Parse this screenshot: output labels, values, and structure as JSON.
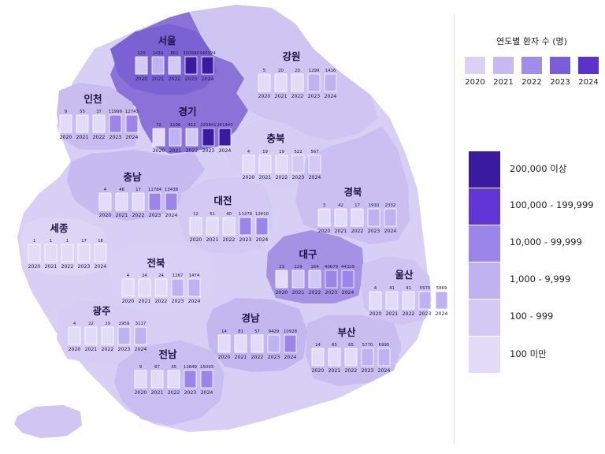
{
  "legend": {
    "title": "연도별 환자 수 (명)",
    "years": [
      "2020",
      "2021",
      "2022",
      "2023",
      "2024"
    ],
    "year_colors": [
      "#d9d2f5",
      "#c6baf1",
      "#a08de8",
      "#7a5ed9",
      "#5a32cc"
    ],
    "scale": [
      {
        "label": "200,000 이상",
        "color": "#3a1a9e"
      },
      {
        "label": "100,000 - 199,999",
        "color": "#6236d6"
      },
      {
        "label": "10,000 - 99,999",
        "color": "#9b84ea"
      },
      {
        "label": "1,000 - 9,999",
        "color": "#bfb2f1"
      },
      {
        "label": "100 - 999",
        "color": "#d2c9f5"
      },
      {
        "label": "100 미만",
        "color": "#e2dcf9"
      }
    ]
  },
  "regions": [
    {
      "id": "seoul",
      "name": "서울",
      "values": [
        "120",
        "1419",
        "861",
        "300990",
        "340324"
      ],
      "levels": [
        4,
        3,
        4,
        0,
        0
      ],
      "fill": "#7b62d2",
      "dark": true
    },
    {
      "id": "gangwon",
      "name": "강원",
      "values": [
        "5",
        "20",
        "20",
        "1299",
        "1416"
      ],
      "levels": [
        5,
        5,
        5,
        3,
        3
      ],
      "fill": "#cfc5f2",
      "dark": false
    },
    {
      "id": "incheon",
      "name": "인천",
      "values": [
        "9",
        "55",
        "37",
        "11999",
        "12743"
      ],
      "levels": [
        5,
        5,
        5,
        2,
        2
      ],
      "fill": "#c9bdf0",
      "dark": false
    },
    {
      "id": "gyeonggi",
      "name": "경기",
      "values": [
        "72",
        "1196",
        "412",
        "225841",
        "261441"
      ],
      "levels": [
        5,
        3,
        4,
        0,
        0
      ],
      "fill": "#8a72d8",
      "dark": true
    },
    {
      "id": "chungbuk",
      "name": "충북",
      "values": [
        "4",
        "19",
        "19",
        "522",
        "567"
      ],
      "levels": [
        5,
        5,
        5,
        4,
        4
      ],
      "fill": "#d6cdf4",
      "dark": false
    },
    {
      "id": "chungnam",
      "name": "충남",
      "values": [
        "4",
        "46",
        "17",
        "11784",
        "13438"
      ],
      "levels": [
        5,
        5,
        5,
        2,
        2
      ],
      "fill": "#c6baf0",
      "dark": false
    },
    {
      "id": "daejeon",
      "name": "대전",
      "values": [
        "12",
        "51",
        "40",
        "11278",
        "12810"
      ],
      "levels": [
        5,
        5,
        5,
        2,
        2
      ],
      "fill": "#d3c9f3",
      "dark": false
    },
    {
      "id": "gyeongbuk",
      "name": "경북",
      "values": [
        "3",
        "42",
        "17",
        "1910",
        "2332"
      ],
      "levels": [
        5,
        5,
        5,
        3,
        3
      ],
      "fill": "#cbbff1",
      "dark": false
    },
    {
      "id": "sejong",
      "name": "세종",
      "values": [
        "1",
        "1",
        "1",
        "17",
        "18"
      ],
      "levels": [
        5,
        5,
        5,
        5,
        5
      ],
      "fill": "#dcd5f6",
      "dark": false
    },
    {
      "id": "daegu",
      "name": "대구",
      "values": [
        "23",
        "229",
        "164",
        "40679",
        "44329"
      ],
      "levels": [
        5,
        4,
        4,
        2,
        2
      ],
      "fill": "#a592e4",
      "dark": false
    },
    {
      "id": "jeonbuk",
      "name": "전북",
      "values": [
        "4",
        "24",
        "24",
        "1267",
        "1474"
      ],
      "levels": [
        5,
        5,
        5,
        3,
        3
      ],
      "fill": "#d9d0f5",
      "dark": false
    },
    {
      "id": "ulsan",
      "name": "울산",
      "values": [
        "4",
        "41",
        "41",
        "5570",
        "5869"
      ],
      "levels": [
        5,
        5,
        5,
        3,
        3
      ],
      "fill": "#cfc4f2",
      "dark": false
    },
    {
      "id": "gwangju",
      "name": "광주",
      "values": [
        "4",
        "22",
        "20",
        "2959",
        "3117"
      ],
      "levels": [
        5,
        5,
        5,
        3,
        3
      ],
      "fill": "#d6ccf4",
      "dark": false
    },
    {
      "id": "gyeongnam",
      "name": "경남",
      "values": [
        "14",
        "81",
        "57",
        "9429",
        "10928"
      ],
      "levels": [
        5,
        5,
        5,
        3,
        2
      ],
      "fill": "#c4b7ef",
      "dark": false
    },
    {
      "id": "busan",
      "name": "부산",
      "values": [
        "14",
        "65",
        "65",
        "5770",
        "6995"
      ],
      "levels": [
        5,
        5,
        5,
        3,
        3
      ],
      "fill": "#c9bdf0",
      "dark": false
    },
    {
      "id": "jeonnam",
      "name": "전남",
      "values": [
        "9",
        "67",
        "35",
        "12849",
        "15093"
      ],
      "levels": [
        5,
        5,
        5,
        2,
        2
      ],
      "fill": "#c9bef1",
      "dark": false
    }
  ]
}
